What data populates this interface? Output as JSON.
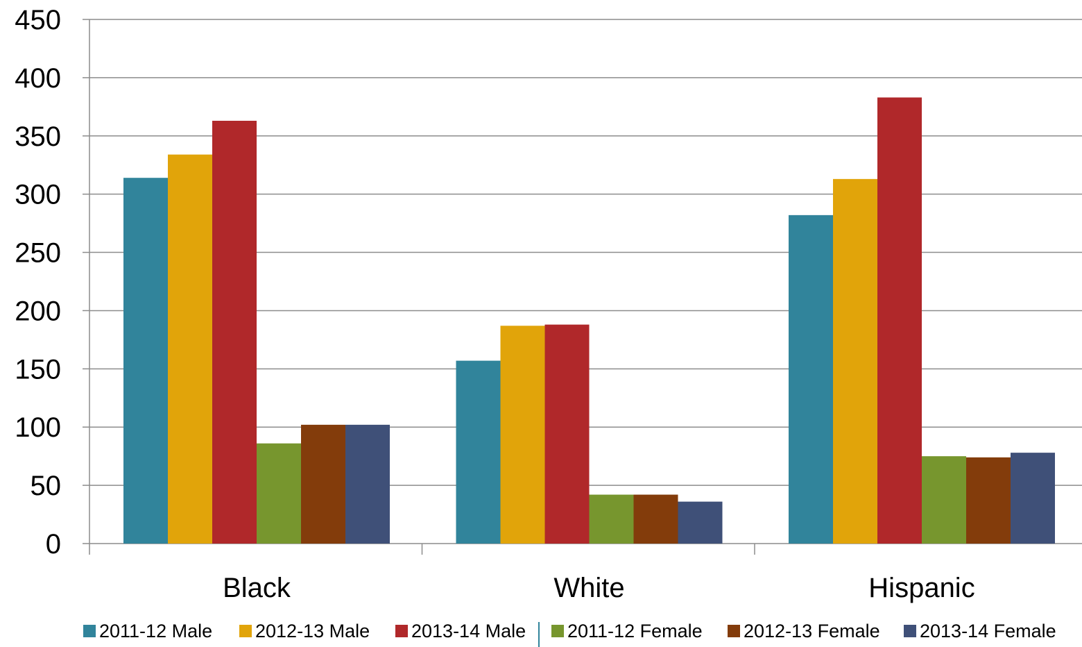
{
  "chart_data": {
    "type": "bar",
    "title": "",
    "xlabel": "",
    "ylabel": "",
    "ylim": [
      0,
      450
    ],
    "yticks": [
      0,
      50,
      100,
      150,
      200,
      250,
      300,
      350,
      400,
      450
    ],
    "grid": true,
    "legend_position": "bottom",
    "categories": [
      "Black",
      "White",
      "Hispanic"
    ],
    "series": [
      {
        "name": "2011-12 Male",
        "color": "#31849B",
        "values": [
          314,
          157,
          282
        ]
      },
      {
        "name": "2012-13 Male",
        "color": "#E1A40A",
        "values": [
          334,
          187,
          313
        ]
      },
      {
        "name": "2013-14 Male",
        "color": "#B0282A",
        "values": [
          363,
          188,
          383
        ]
      },
      {
        "name": "2011-12 Female",
        "color": "#77962E",
        "values": [
          86,
          42,
          75
        ]
      },
      {
        "name": "2012-13 Female",
        "color": "#833C0B",
        "values": [
          102,
          42,
          74
        ]
      },
      {
        "name": "2013-14 Female",
        "color": "#3F5078",
        "values": [
          102,
          36,
          78
        ]
      }
    ]
  }
}
